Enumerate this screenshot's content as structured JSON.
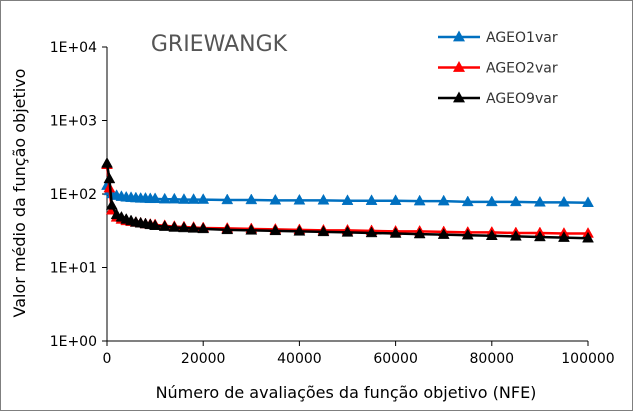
{
  "chart_data": {
    "type": "line",
    "title": "GRIEWANGK",
    "xlabel": "Número de avaliações da função objetivo (NFE)",
    "ylabel": "Valor médio da função objetivo",
    "xlim": [
      0,
      100000
    ],
    "ylim": [
      1,
      10000
    ],
    "yscale": "log",
    "x_ticks": [
      0,
      20000,
      40000,
      60000,
      80000,
      100000
    ],
    "x_tick_labels": [
      "0",
      "20000",
      "40000",
      "60000",
      "80000",
      "100000"
    ],
    "y_ticks": [
      1,
      10,
      100,
      1000,
      10000
    ],
    "y_tick_labels": [
      "1E+00",
      "1E+01",
      "1E+02",
      "1E+03",
      "1E+04"
    ],
    "grid": false,
    "legend_position": "top-right",
    "series": [
      {
        "name": "AGEO1var",
        "color": "#0070C0",
        "marker": "triangle",
        "x": [
          0,
          500,
          1000,
          2000,
          3000,
          4000,
          5000,
          6000,
          7000,
          8000,
          9000,
          10000,
          12000,
          14000,
          16000,
          18000,
          20000,
          25000,
          30000,
          35000,
          40000,
          45000,
          50000,
          55000,
          60000,
          65000,
          70000,
          75000,
          80000,
          85000,
          90000,
          95000,
          100000
        ],
        "y": [
          130,
          110,
          100,
          95,
          92,
          90,
          89,
          88,
          87,
          87,
          86,
          86,
          85,
          85,
          84,
          84,
          84,
          83,
          83,
          82,
          82,
          82,
          81,
          81,
          81,
          80,
          80,
          78,
          78,
          78,
          77,
          77,
          76
        ]
      },
      {
        "name": "AGEO2var",
        "color": "#FF0000",
        "marker": "triangle",
        "x": [
          0,
          500,
          1000,
          2000,
          3000,
          4000,
          5000,
          6000,
          7000,
          8000,
          9000,
          10000,
          12000,
          14000,
          16000,
          18000,
          20000,
          25000,
          30000,
          35000,
          40000,
          45000,
          50000,
          55000,
          60000,
          65000,
          70000,
          75000,
          80000,
          85000,
          90000,
          95000,
          100000
        ],
        "y": [
          250,
          120,
          60,
          48,
          45,
          43,
          42,
          41,
          40,
          39,
          38.5,
          38,
          37,
          36,
          35.5,
          35,
          34.5,
          34,
          33.5,
          33,
          32.5,
          32,
          32,
          31.5,
          31,
          31,
          30.5,
          30,
          30,
          29.5,
          29.5,
          29,
          29
        ]
      },
      {
        "name": "AGEO9var",
        "color": "#000000",
        "marker": "triangle",
        "x": [
          0,
          500,
          1000,
          2000,
          3000,
          4000,
          5000,
          6000,
          7000,
          8000,
          9000,
          10000,
          12000,
          14000,
          16000,
          18000,
          20000,
          25000,
          30000,
          35000,
          40000,
          45000,
          50000,
          55000,
          60000,
          65000,
          70000,
          75000,
          80000,
          85000,
          90000,
          95000,
          100000
        ],
        "y": [
          260,
          160,
          70,
          52,
          48,
          45,
          43,
          41,
          40,
          39,
          38,
          37,
          36,
          35,
          34.5,
          34,
          33.5,
          32.5,
          32,
          31.5,
          31,
          30.5,
          30,
          29.5,
          29,
          28.5,
          28,
          27.5,
          27,
          26.5,
          26,
          25.5,
          25
        ]
      }
    ]
  }
}
